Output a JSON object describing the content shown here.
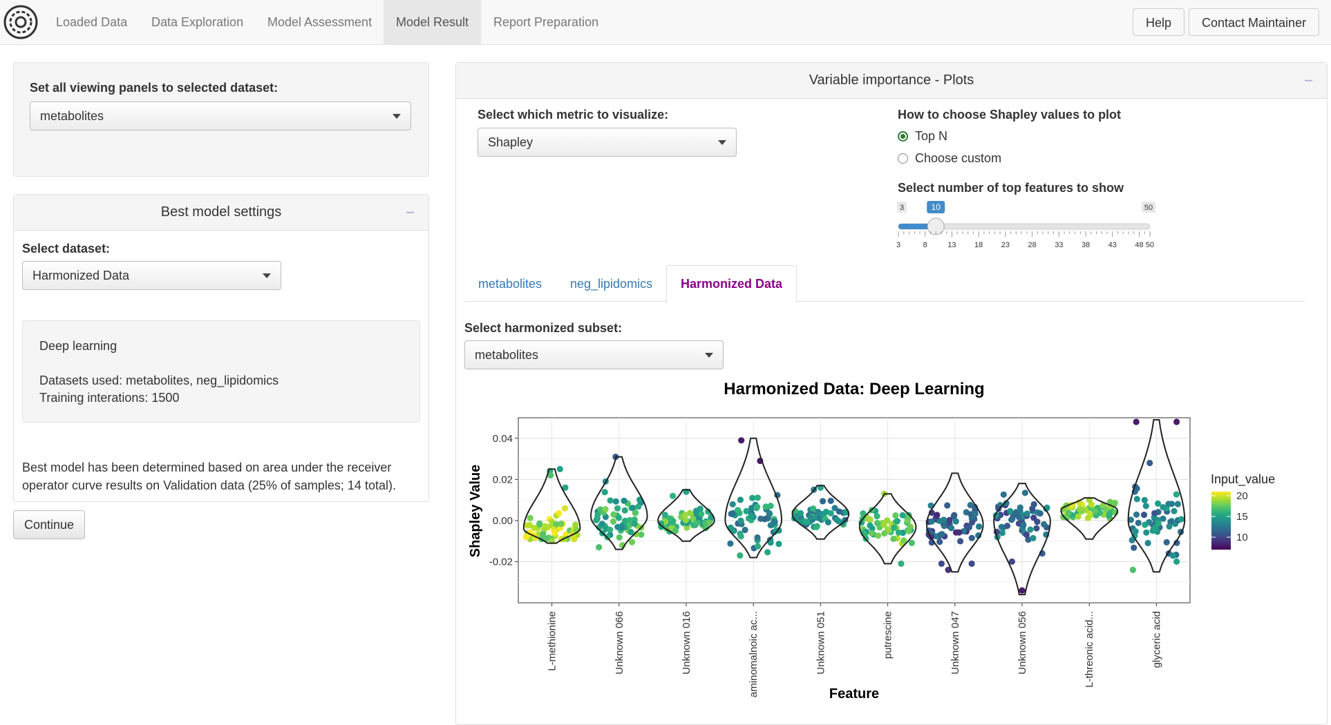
{
  "navbar": {
    "tabs": [
      {
        "label": "Loaded Data"
      },
      {
        "label": "Data Exploration"
      },
      {
        "label": "Model Assessment"
      },
      {
        "label": "Model Result"
      },
      {
        "label": "Report Preparation"
      }
    ],
    "active_tab": "Model Result",
    "help_label": "Help",
    "contact_label": "Contact Maintainer"
  },
  "left": {
    "view_all_label": "Set all viewing panels to selected dataset:",
    "view_all_value": "metabolites",
    "best_model": {
      "title": "Best model settings",
      "collapse": "−",
      "select_label": "Select dataset:",
      "select_value": "Harmonized Data",
      "summary_title": "Deep learning",
      "summary_datasets": "Datasets used: metabolites, neg_lipidomics",
      "summary_training": "Training interations: 1500",
      "note": "Best model has been determined based on area under the receiver operator curve results on Validation data (25% of samples; 14 total)."
    },
    "continue_label": "Continue"
  },
  "right": {
    "title": "Variable importance - Plots",
    "collapse": "−",
    "metric_label": "Select which metric to visualize:",
    "metric_value": "Shapley",
    "shap_choose_label": "How to choose Shapley values to plot",
    "radio_options": [
      {
        "label": "Top N",
        "selected": true
      },
      {
        "label": "Choose custom",
        "selected": false
      }
    ],
    "slider": {
      "label": "Select number of top features to show",
      "min": 3,
      "max": 50,
      "value": 10,
      "min_label": "3",
      "max_label": "50",
      "value_label": "10",
      "ticks": [
        "3",
        "8",
        "13",
        "18",
        "23",
        "28",
        "33",
        "38",
        "43",
        "48",
        "50"
      ],
      "color": "#428bca"
    },
    "tabs": [
      {
        "label": "metabolites"
      },
      {
        "label": "neg_lipidomics"
      },
      {
        "label": "Harmonized Data"
      }
    ],
    "active_tab": "Harmonized Data",
    "subset_label": "Select harmonized subset:",
    "subset_value": "metabolites"
  },
  "chart_data": {
    "type": "scatter",
    "subtype": "violin-beeswarm",
    "title": "Harmonized Data: Deep Learning",
    "xlabel": "Feature",
    "ylabel": "Shapley Value",
    "ylim": [
      -0.04,
      0.05
    ],
    "yticks": [
      "0.04",
      "0.02",
      "0.00",
      "-0.02"
    ],
    "grid": true,
    "legend": {
      "title": "Input_value",
      "position": "right",
      "ticks": [
        "20",
        "15",
        "10"
      ],
      "range": [
        7,
        21
      ],
      "colormap": "viridis"
    },
    "categories": [
      "L-methionine",
      "Unknown 066",
      "Unknown 016",
      "aminomalnoic ac...",
      "Unknown 051",
      "putrescine",
      "Unknown 047",
      "Unknown 056",
      "L-threonic acid...",
      "glyceric acid"
    ],
    "series": [
      {
        "category": "L-methionine",
        "min": -0.011,
        "max": 0.025,
        "center": -0.004,
        "mean_input": 19.5,
        "points": [
          [
            -0.03,
            0.024,
            16
          ],
          [
            0.12,
            0.025,
            15
          ],
          [
            0.2,
            0.016,
            15
          ],
          [
            -0.02,
            0.022,
            17
          ],
          [
            0,
            -0.01,
            19
          ]
        ]
      },
      {
        "category": "Unknown 066",
        "min": -0.014,
        "max": 0.031,
        "center": 0.002,
        "mean_input": 16,
        "points": [
          [
            -0.05,
            0.031,
            11
          ],
          [
            -0.2,
            0.019,
            14
          ],
          [
            0.05,
            -0.012,
            18
          ],
          [
            -0.3,
            -0.013,
            17
          ]
        ]
      },
      {
        "category": "Unknown 016",
        "min": -0.01,
        "max": 0.015,
        "center": 0.0,
        "mean_input": 16.5,
        "points": [
          [
            0,
            0.014,
            15
          ],
          [
            -0.2,
            0.012,
            16
          ]
        ]
      },
      {
        "category": "aminomalnoic ac...",
        "min": -0.018,
        "max": 0.04,
        "center": 0.0,
        "mean_input": 14,
        "points": [
          [
            -0.18,
            0.039,
            8
          ],
          [
            0.1,
            0.029,
            8
          ],
          [
            -0.2,
            -0.017,
            16
          ]
        ]
      },
      {
        "category": "Unknown 051",
        "min": -0.009,
        "max": 0.017,
        "center": 0.003,
        "mean_input": 14,
        "points": [
          [
            0,
            0.016,
            15
          ],
          [
            -0.1,
            0.015,
            13
          ]
        ]
      },
      {
        "category": "putrescine",
        "min": -0.021,
        "max": 0.013,
        "center": -0.003,
        "mean_input": 17,
        "points": [
          [
            -0.05,
            0.013,
            19
          ],
          [
            0.2,
            -0.021,
            16
          ]
        ]
      },
      {
        "category": "Unknown 047",
        "min": -0.025,
        "max": 0.023,
        "center": -0.002,
        "mean_input": 11,
        "points": [
          [
            -0.2,
            -0.021,
            10
          ],
          [
            -0.1,
            -0.024,
            9
          ],
          [
            0.25,
            -0.021,
            10
          ]
        ]
      },
      {
        "category": "Unknown 056",
        "min": -0.036,
        "max": 0.018,
        "center": 0.0,
        "mean_input": 12,
        "points": [
          [
            0,
            -0.034,
            8
          ],
          [
            -0.15,
            -0.02,
            10
          ],
          [
            0.3,
            -0.016,
            11
          ]
        ]
      },
      {
        "category": "L-threonic acid...",
        "min": -0.009,
        "max": 0.011,
        "center": 0.005,
        "mean_input": 18,
        "points": [
          [
            0,
            0.01,
            19
          ]
        ]
      },
      {
        "category": "glyceric acid",
        "min": -0.025,
        "max": 0.049,
        "center": 0.0,
        "mean_input": 13,
        "points": [
          [
            -0.3,
            0.048,
            8
          ],
          [
            0.3,
            0.048,
            8
          ],
          [
            -0.1,
            0.028,
            11
          ],
          [
            -0.35,
            -0.024,
            17
          ],
          [
            0.3,
            -0.02,
            15
          ]
        ]
      }
    ]
  }
}
